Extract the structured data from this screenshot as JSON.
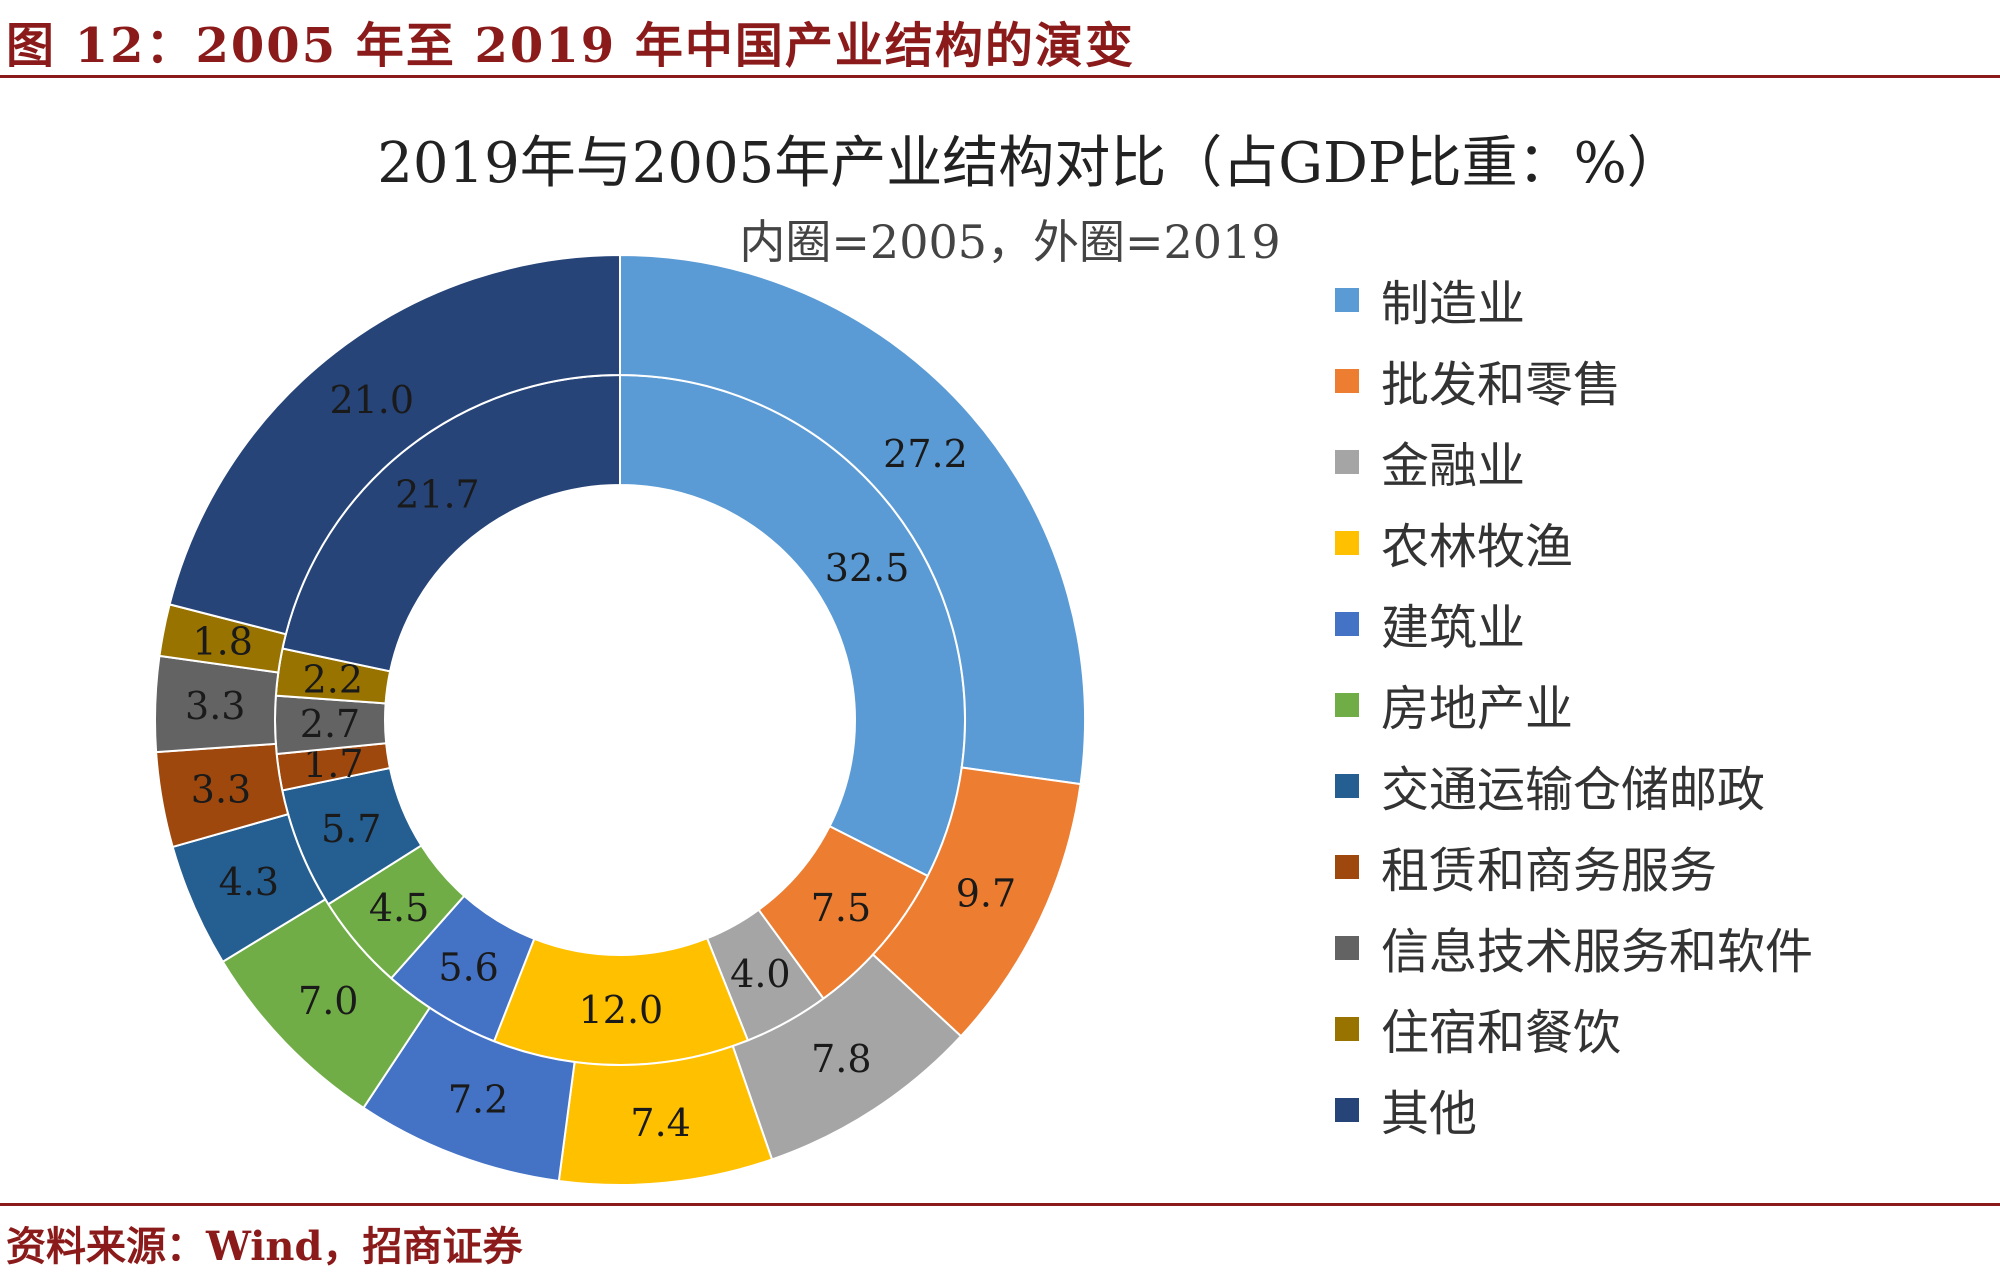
{
  "figure": {
    "title": "图 12：2005 年至 2019 年中国产业结构的演变",
    "source": "资料来源：Wind，招商证券"
  },
  "chart_data": {
    "type": "pie",
    "title": "2019年与2005年产业结构对比（占GDP比重：%）",
    "subtitle": "内圈=2005，外圈=2019",
    "legend_position": "right",
    "categories": [
      "制造业",
      "批发和零售",
      "金融业",
      "农林牧渔",
      "建筑业",
      "房地产业",
      "交通运输仓储邮政",
      "租赁和商务服务",
      "信息技术服务和软件",
      "住宿和餐饮",
      "其他"
    ],
    "colors": [
      "#5b9bd5",
      "#ed7d31",
      "#a5a5a5",
      "#ffc000",
      "#4472c4",
      "#70ad47",
      "#255e91",
      "#9e480e",
      "#636363",
      "#997300",
      "#264478"
    ],
    "series": [
      {
        "name": "2005",
        "ring": "inner",
        "values": [
          32.5,
          7.5,
          4.0,
          12.0,
          5.6,
          4.5,
          5.7,
          1.7,
          2.7,
          2.2,
          21.7
        ]
      },
      {
        "name": "2019",
        "ring": "outer",
        "values": [
          27.2,
          9.7,
          7.8,
          7.4,
          7.2,
          7.0,
          4.3,
          3.3,
          3.3,
          1.8,
          21.0
        ]
      }
    ]
  }
}
